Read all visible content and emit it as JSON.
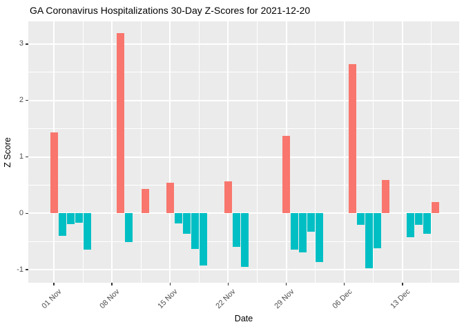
{
  "chart_data": {
    "type": "bar",
    "title": "GA Coronavirus Hospitalizations 30-Day Z-Scores for 2021-12-20",
    "xlabel": "Date",
    "ylabel": "Z Score",
    "x_origin_date": "2021-11-01",
    "x_range_days": [
      -3.2,
      48.9
    ],
    "y_range": [
      -1.23,
      3.4
    ],
    "y_ticks": [
      -1,
      0,
      1,
      2,
      3
    ],
    "y_minor_ticks": [
      -0.5,
      0.5,
      1.5,
      2.5
    ],
    "x_ticks": [
      {
        "date": "2021-11-01",
        "label": "01 Nov"
      },
      {
        "date": "2021-11-08",
        "label": "08 Nov"
      },
      {
        "date": "2021-11-15",
        "label": "15 Nov"
      },
      {
        "date": "2021-11-22",
        "label": "22 Nov"
      },
      {
        "date": "2021-11-29",
        "label": "29 Nov"
      },
      {
        "date": "2021-12-06",
        "label": "06 Dec"
      },
      {
        "date": "2021-12-13",
        "label": "13 Dec"
      }
    ],
    "x_minor_offset_days": 3.5,
    "grid": true,
    "legend": "none",
    "colors": {
      "positive": "#F8766D",
      "negative": "#00BFC4",
      "panel_background": "#ebebeb",
      "gridline": "#ffffff",
      "tick_text": "#4d4d4d",
      "axis_tick": "#333333"
    },
    "points": [
      {
        "date": "2021-11-01",
        "value": 1.43
      },
      {
        "date": "2021-11-02",
        "value": -0.4
      },
      {
        "date": "2021-11-03",
        "value": -0.19
      },
      {
        "date": "2021-11-04",
        "value": -0.17
      },
      {
        "date": "2021-11-05",
        "value": -0.64
      },
      {
        "date": "2021-11-09",
        "value": 3.19
      },
      {
        "date": "2021-11-10",
        "value": -0.51
      },
      {
        "date": "2021-11-12",
        "value": 0.43
      },
      {
        "date": "2021-11-15",
        "value": 0.54
      },
      {
        "date": "2021-11-16",
        "value": -0.18
      },
      {
        "date": "2021-11-17",
        "value": -0.36
      },
      {
        "date": "2021-11-18",
        "value": -0.63
      },
      {
        "date": "2021-11-19",
        "value": -0.93
      },
      {
        "date": "2021-11-22",
        "value": 0.57
      },
      {
        "date": "2021-11-23",
        "value": -0.6
      },
      {
        "date": "2021-11-24",
        "value": -0.95
      },
      {
        "date": "2021-11-29",
        "value": 1.37
      },
      {
        "date": "2021-11-30",
        "value": -0.65
      },
      {
        "date": "2021-12-01",
        "value": -0.69
      },
      {
        "date": "2021-12-02",
        "value": -0.33
      },
      {
        "date": "2021-12-03",
        "value": -0.86
      },
      {
        "date": "2021-12-07",
        "value": 2.64
      },
      {
        "date": "2021-12-08",
        "value": -0.21
      },
      {
        "date": "2021-12-09",
        "value": -0.97
      },
      {
        "date": "2021-12-10",
        "value": -0.62
      },
      {
        "date": "2021-12-11",
        "value": 0.59
      },
      {
        "date": "2021-12-14",
        "value": -0.42
      },
      {
        "date": "2021-12-15",
        "value": -0.21
      },
      {
        "date": "2021-12-16",
        "value": -0.36
      },
      {
        "date": "2021-12-17",
        "value": 0.2
      }
    ]
  }
}
